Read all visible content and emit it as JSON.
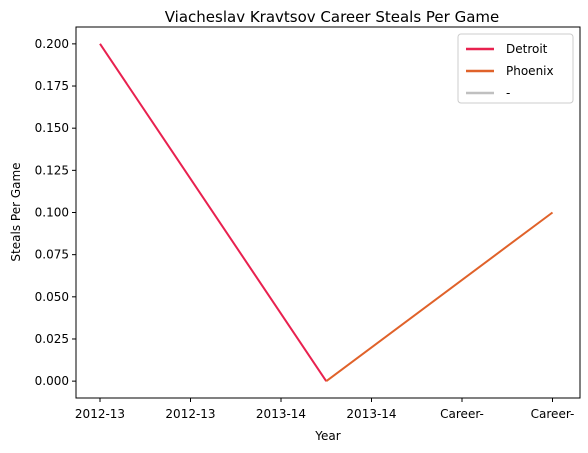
{
  "chart_data": {
    "type": "line",
    "title": "Viacheslav Kravtsov Career Steals Per Game",
    "xlabel": "Year",
    "ylabel": "Steals Per Game",
    "x_ticks": [
      "2012-13",
      "2012-13",
      "2013-14",
      "2013-14",
      "Career-",
      "Career-"
    ],
    "ylim": [
      -0.01,
      0.21
    ],
    "y_ticks": [
      "0.000",
      "0.025",
      "0.050",
      "0.075",
      "0.100",
      "0.125",
      "0.150",
      "0.175",
      "0.200"
    ],
    "grid": false,
    "legend_position": "top-right",
    "series": [
      {
        "name": "Detroit",
        "color": "#e8214f",
        "points": [
          {
            "x": "2012-13",
            "y": 0.2
          },
          {
            "x": "2013-14",
            "y": 0.0
          }
        ]
      },
      {
        "name": "Phoenix",
        "color": "#e0622a",
        "points": [
          {
            "x": "2013-14",
            "y": 0.0
          },
          {
            "x": "Career-",
            "y": 0.1
          }
        ]
      },
      {
        "name": "-",
        "color": "#c0c0c0",
        "points": []
      }
    ]
  }
}
